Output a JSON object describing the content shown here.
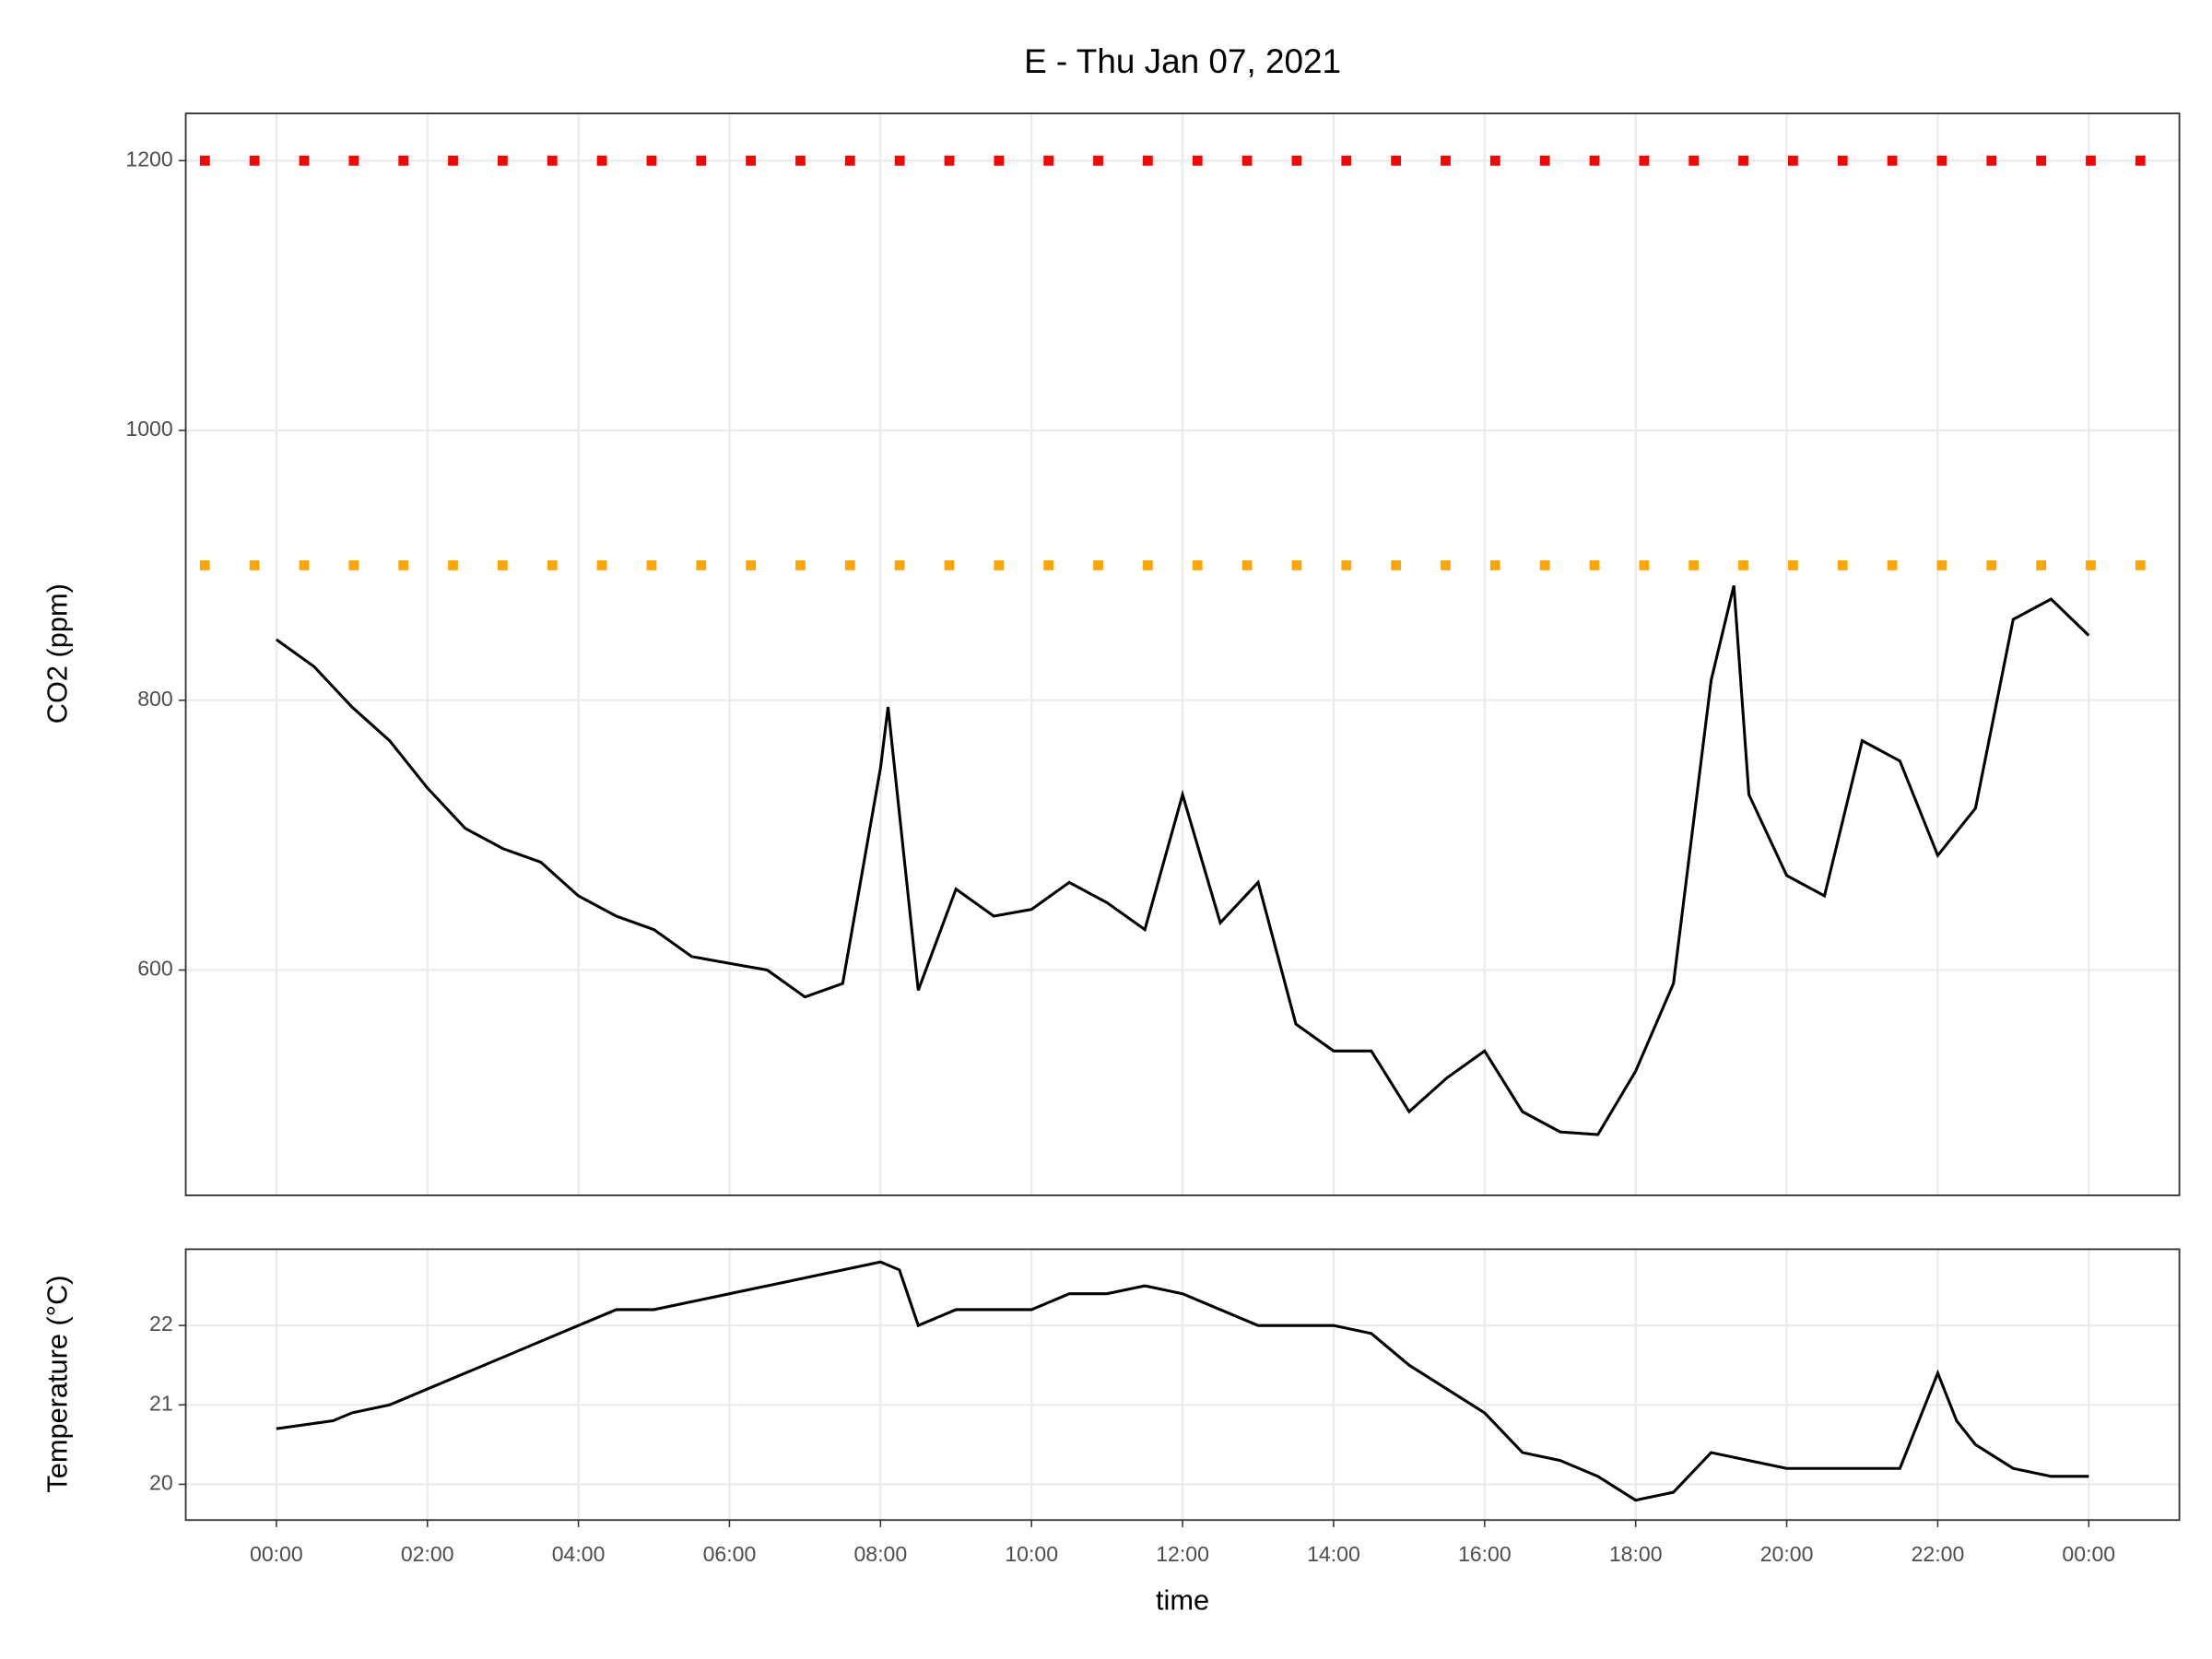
{
  "chart_data": [
    {
      "type": "line",
      "title": "E - Thu Jan 07, 2021",
      "ylabel": "CO2 (ppm)",
      "x": [
        0,
        0.5,
        1,
        1.5,
        2,
        2.5,
        3,
        3.5,
        4,
        4.5,
        5,
        5.5,
        6,
        6.5,
        7,
        7.5,
        8,
        8.1,
        8.5,
        9,
        9.5,
        10,
        10.5,
        11,
        11.5,
        12,
        12.5,
        13,
        13.5,
        14,
        14.5,
        15,
        15.5,
        16,
        16.5,
        17,
        17.5,
        18,
        18.5,
        19,
        19.3,
        19.5,
        20,
        20.5,
        21,
        21.5,
        22,
        22.5,
        23,
        23.5,
        24
      ],
      "series": [
        {
          "name": "CO2",
          "color": "#000000",
          "values": [
            845,
            825,
            795,
            770,
            735,
            705,
            690,
            680,
            655,
            640,
            630,
            610,
            605,
            600,
            580,
            590,
            750,
            795,
            585,
            660,
            640,
            645,
            665,
            650,
            630,
            730,
            635,
            665,
            560,
            540,
            540,
            495,
            520,
            540,
            495,
            480,
            478,
            525,
            590,
            815,
            885,
            730,
            670,
            655,
            770,
            755,
            685,
            720,
            860,
            875,
            848
          ]
        }
      ],
      "hlines": [
        {
          "value": 1200,
          "color": "#ff0000"
        },
        {
          "value": 900,
          "color": "#ffa500"
        }
      ],
      "ylim": [
        433,
        1235
      ],
      "yticks": [
        600,
        800,
        1000,
        1200
      ],
      "grid": true
    },
    {
      "type": "line",
      "ylabel": "Temperature (°C)",
      "xlabel": "time",
      "x": [
        0,
        0.75,
        1,
        1.5,
        2,
        2.5,
        3,
        3.5,
        4,
        4.5,
        5,
        6,
        6.5,
        7,
        7.5,
        8,
        8.25,
        8.5,
        9,
        10,
        10.5,
        11,
        11.5,
        12,
        12.5,
        13,
        14,
        14.5,
        15,
        15.5,
        16,
        16.5,
        17,
        17.5,
        18,
        18.5,
        19,
        19.5,
        20,
        21,
        21.5,
        22,
        22.25,
        22.5,
        23,
        23.5,
        24
      ],
      "series": [
        {
          "name": "Temperature",
          "color": "#000000",
          "values": [
            20.7,
            20.8,
            20.9,
            21.0,
            21.2,
            21.4,
            21.6,
            21.8,
            22.0,
            22.2,
            22.2,
            22.4,
            22.5,
            22.6,
            22.7,
            22.8,
            22.7,
            22.0,
            22.2,
            22.2,
            22.4,
            22.4,
            22.5,
            22.4,
            22.2,
            22.0,
            22.0,
            21.9,
            21.5,
            21.2,
            20.9,
            20.4,
            20.3,
            20.1,
            19.8,
            19.9,
            20.4,
            20.3,
            20.2,
            20.2,
            20.2,
            21.4,
            20.8,
            20.5,
            20.2,
            20.1,
            20.1
          ]
        }
      ],
      "ylim": [
        19.55,
        22.96
      ],
      "yticks": [
        20,
        21,
        22
      ],
      "grid": true,
      "xlim": [
        -1.2,
        25.2
      ],
      "xticks": [
        {
          "value": 0,
          "label": "00:00"
        },
        {
          "value": 2,
          "label": "02:00"
        },
        {
          "value": 4,
          "label": "04:00"
        },
        {
          "value": 6,
          "label": "06:00"
        },
        {
          "value": 8,
          "label": "08:00"
        },
        {
          "value": 10,
          "label": "10:00"
        },
        {
          "value": 12,
          "label": "12:00"
        },
        {
          "value": 14,
          "label": "14:00"
        },
        {
          "value": 16,
          "label": "16:00"
        },
        {
          "value": 18,
          "label": "18:00"
        },
        {
          "value": 20,
          "label": "20:00"
        },
        {
          "value": 22,
          "label": "22:00"
        },
        {
          "value": 24,
          "label": "00:00"
        }
      ]
    }
  ]
}
